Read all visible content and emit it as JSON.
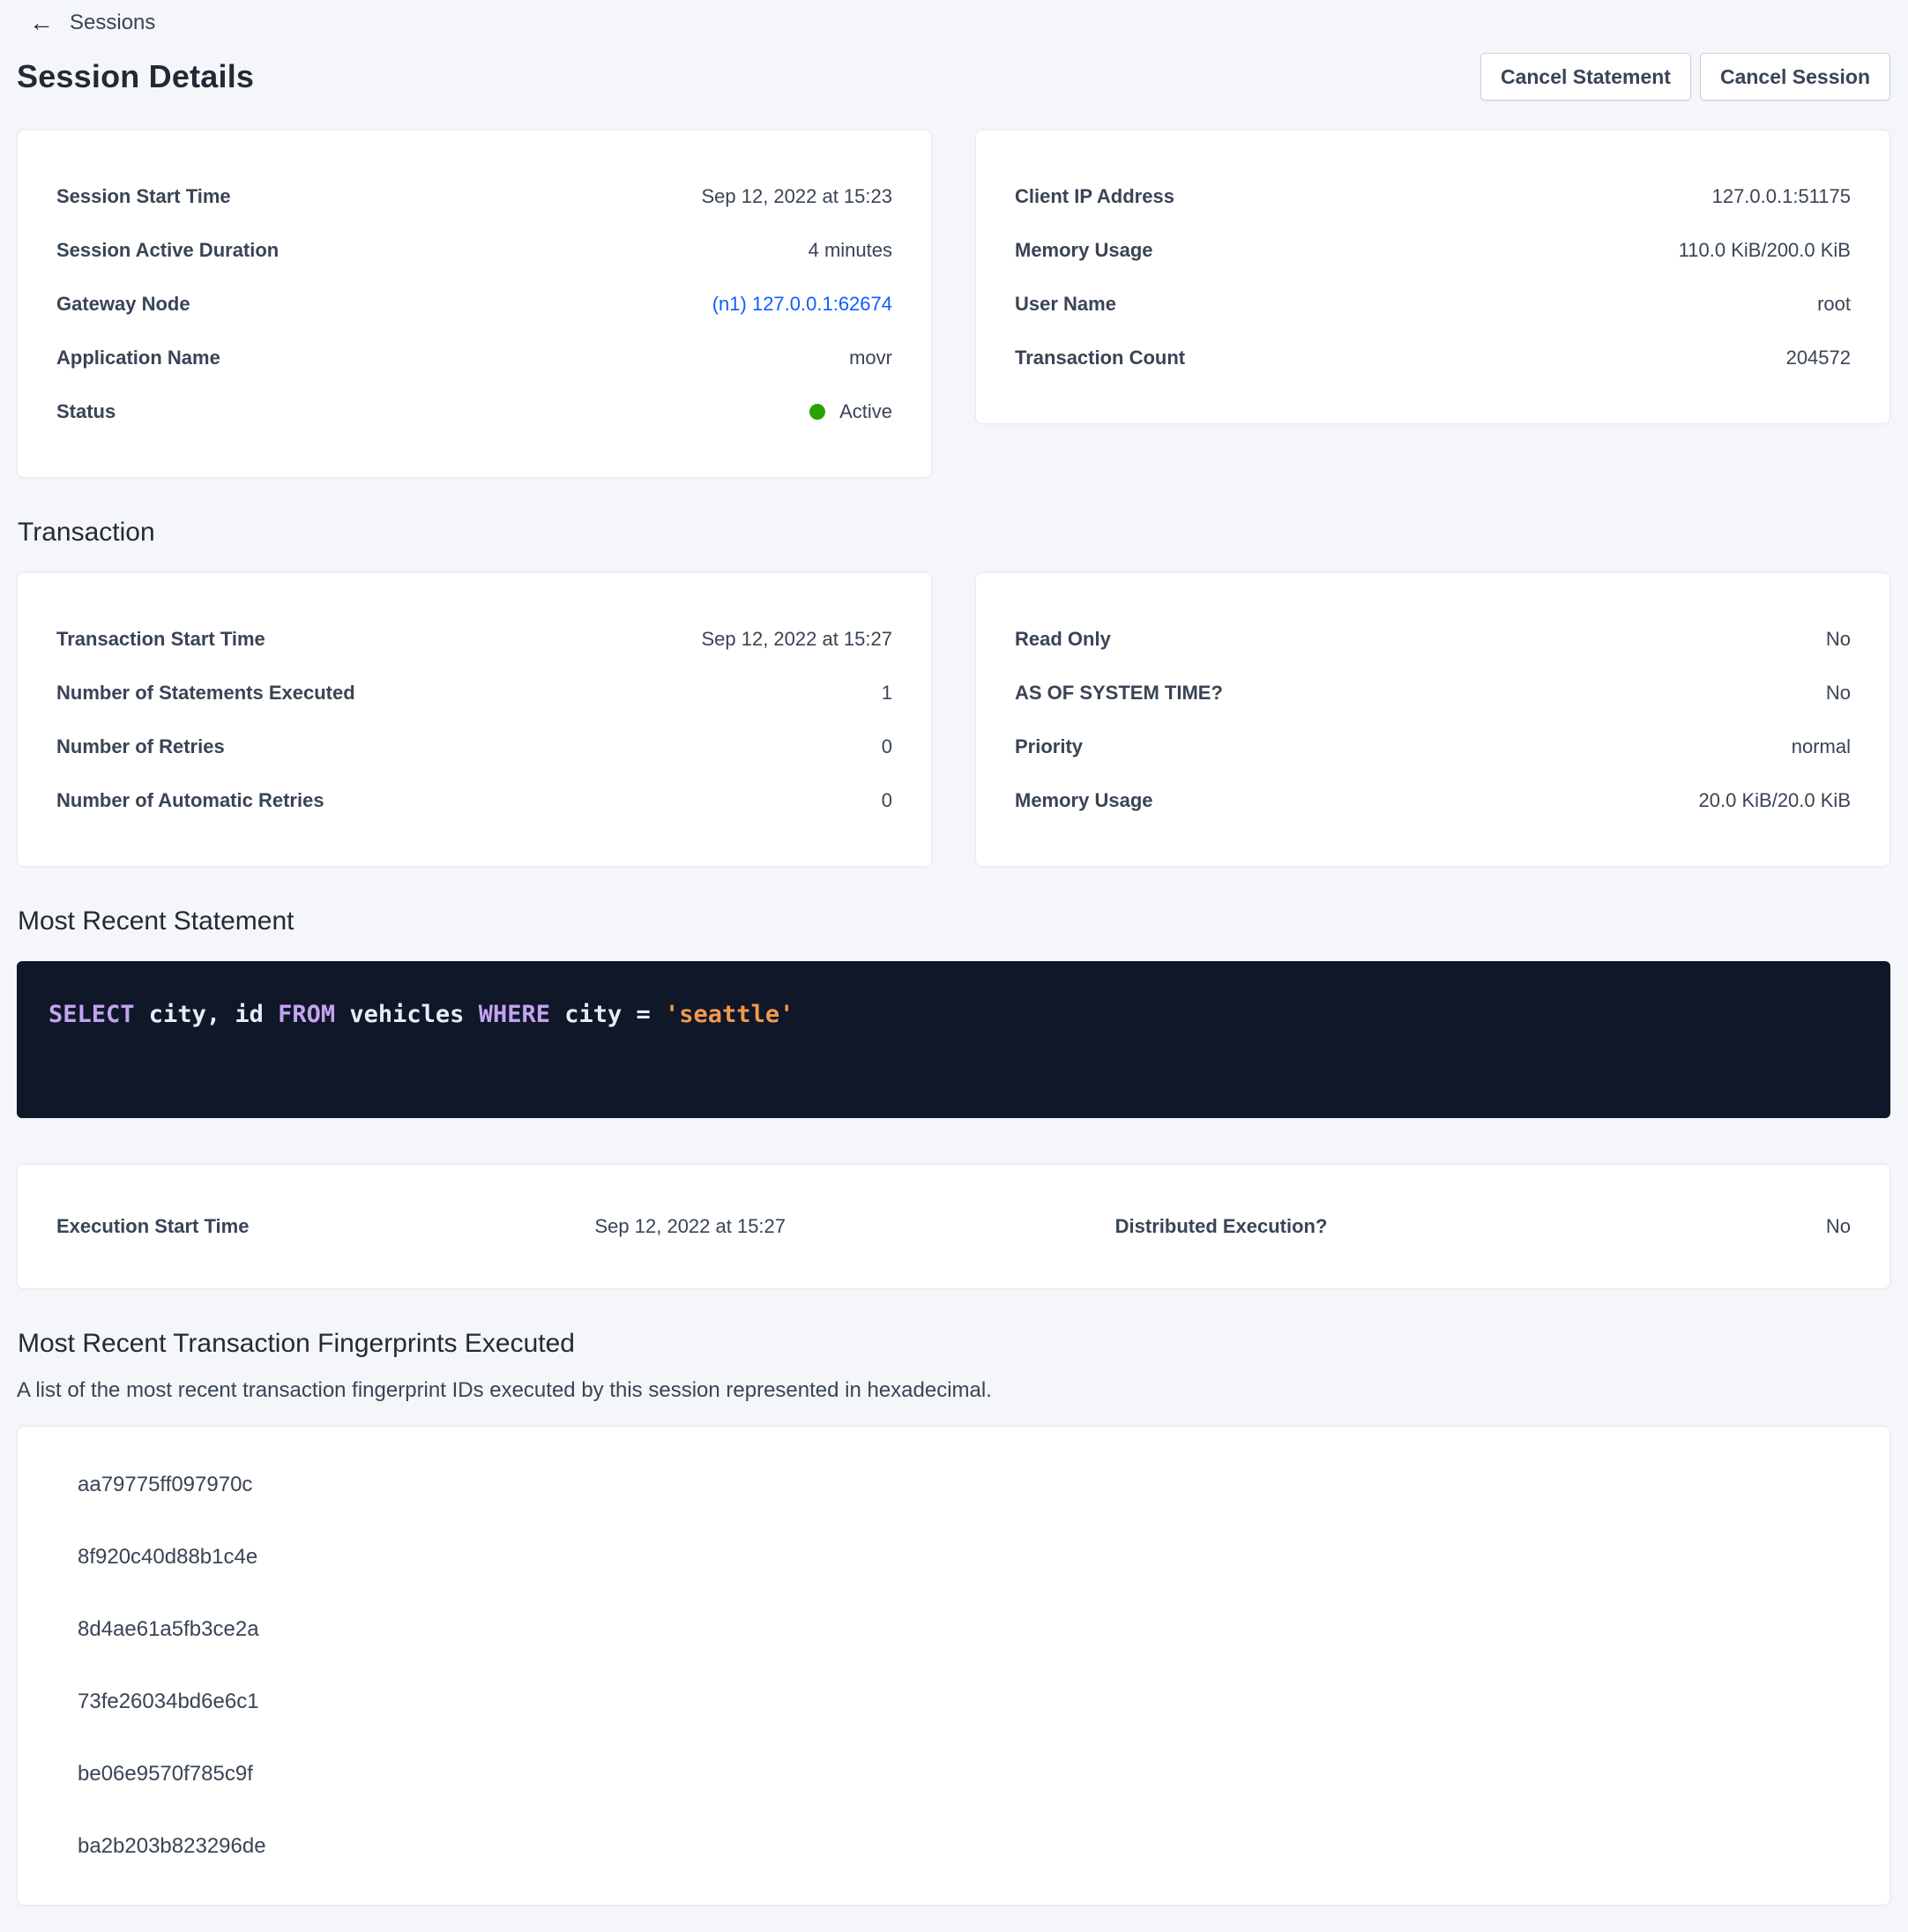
{
  "breadcrumb": {
    "label": "Sessions"
  },
  "header": {
    "title": "Session Details",
    "cancel_statement": "Cancel Statement",
    "cancel_session": "Cancel Session"
  },
  "session_left_rows": [
    {
      "label": "Session Start Time",
      "value": "Sep 12, 2022 at 15:23"
    },
    {
      "label": "Session Active Duration",
      "value": "4 minutes"
    },
    {
      "label": "Gateway Node",
      "value": "(n1) 127.0.0.1:62674"
    },
    {
      "label": "Application Name",
      "value": "movr"
    },
    {
      "label": "Status",
      "value": "Active"
    }
  ],
  "session_right_rows": [
    {
      "label": "Client IP Address",
      "value": "127.0.0.1:51175"
    },
    {
      "label": "Memory Usage",
      "value": "110.0 KiB/200.0 KiB"
    },
    {
      "label": "User Name",
      "value": "root"
    },
    {
      "label": "Transaction Count",
      "value": "204572"
    }
  ],
  "transaction_section": {
    "heading": "Transaction"
  },
  "transaction_left_rows": [
    {
      "label": "Transaction Start Time",
      "value": "Sep 12, 2022 at 15:27"
    },
    {
      "label": "Number of Statements Executed",
      "value": "1"
    },
    {
      "label": "Number of Retries",
      "value": "0"
    },
    {
      "label": "Number of Automatic Retries",
      "value": "0"
    }
  ],
  "transaction_right_rows": [
    {
      "label": "Read Only",
      "value": "No"
    },
    {
      "label": "AS OF SYSTEM TIME?",
      "value": "No"
    },
    {
      "label": "Priority",
      "value": "normal"
    },
    {
      "label": "Memory Usage",
      "value": "20.0 KiB/20.0 KiB"
    }
  ],
  "statement_section": {
    "heading": "Most Recent Statement"
  },
  "sql": {
    "tokens": [
      {
        "text": "SELECT"
      },
      {
        "text": " city, id "
      },
      {
        "text": "FROM"
      },
      {
        "text": " vehicles "
      },
      {
        "text": "WHERE"
      },
      {
        "text": " city = "
      },
      {
        "text": "'seattle'"
      }
    ]
  },
  "execution_row": {
    "label1": "Execution Start Time",
    "value1": "Sep 12, 2022 at 15:27",
    "label2": "Distributed Execution?",
    "value2": "No"
  },
  "fingerprints": {
    "heading": "Most Recent Transaction Fingerprints Executed",
    "description": "A list of the most recent transaction fingerprint IDs executed by this session represented in hexadecimal.",
    "items": [
      "aa79775ff097970c",
      "8f920c40d88b1c4e",
      "8d4ae61a5fb3ce2a",
      "73fe26034bd6e6c1",
      "be06e9570f785c9f",
      "ba2b203b823296de"
    ]
  },
  "colors": {
    "link_blue": "#0b5fff",
    "status_green": "#2aa300",
    "sql_background": "#0f1729",
    "sql_keyword": "#c5a3f0",
    "sql_string": "#f2994a",
    "page_background": "#f4f6fa"
  }
}
